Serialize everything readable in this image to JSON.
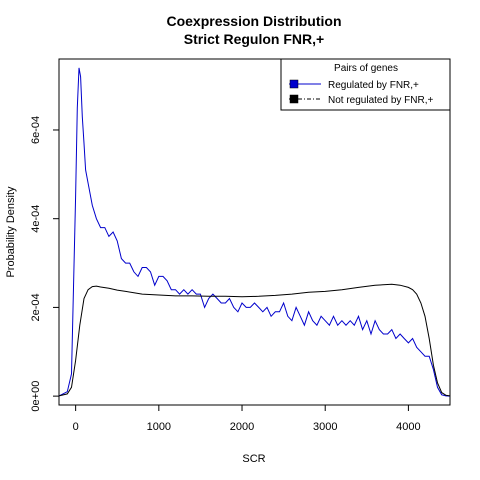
{
  "chart_data": {
    "type": "line",
    "title": "Coexpression Distribution",
    "subtitle": "Strict Regulon FNR,+",
    "xlabel": "SCR",
    "ylabel": "Probability Density",
    "xlim": [
      -200,
      4500
    ],
    "ylim": [
      -2e-05,
      0.00076
    ],
    "x_ticks": [
      0,
      1000,
      2000,
      3000,
      4000
    ],
    "x_tick_labels": [
      "0",
      "1000",
      "2000",
      "3000",
      "4000"
    ],
    "y_ticks": [
      0,
      0.0002,
      0.0004,
      0.0006
    ],
    "y_tick_labels": [
      "0e+00",
      "2e-04",
      "4e-04",
      "6e-04"
    ],
    "grid": false,
    "legend": {
      "title": "Pairs of genes",
      "position": "top-right",
      "entries": [
        "Regulated by  FNR,+",
        "Not regulated by  FNR,+"
      ]
    },
    "series": [
      {
        "name": "Regulated by  FNR,+",
        "color": "#0000cc",
        "x": [
          -200,
          -100,
          -50,
          0,
          20,
          40,
          60,
          80,
          100,
          120,
          150,
          200,
          250,
          300,
          350,
          400,
          450,
          500,
          550,
          600,
          650,
          700,
          750,
          800,
          850,
          900,
          950,
          1000,
          1050,
          1100,
          1150,
          1200,
          1250,
          1300,
          1350,
          1400,
          1450,
          1500,
          1550,
          1600,
          1650,
          1700,
          1750,
          1800,
          1850,
          1900,
          1950,
          2000,
          2050,
          2100,
          2150,
          2200,
          2250,
          2300,
          2350,
          2400,
          2450,
          2500,
          2550,
          2600,
          2650,
          2700,
          2750,
          2800,
          2850,
          2900,
          2950,
          3000,
          3050,
          3100,
          3150,
          3200,
          3250,
          3300,
          3350,
          3400,
          3450,
          3500,
          3550,
          3600,
          3650,
          3700,
          3750,
          3800,
          3850,
          3900,
          3950,
          4000,
          4050,
          4100,
          4150,
          4200,
          4250,
          4300,
          4350,
          4400,
          4450,
          4500
        ],
        "y": [
          5e-07,
          1e-05,
          5e-05,
          0.00045,
          0.00065,
          0.00074,
          0.00072,
          0.00063,
          0.00057,
          0.00051,
          0.00048,
          0.00043,
          0.0004,
          0.00038,
          0.00038,
          0.00036,
          0.00037,
          0.00035,
          0.00031,
          0.0003,
          0.0003,
          0.00028,
          0.00027,
          0.00029,
          0.00029,
          0.00028,
          0.00025,
          0.00027,
          0.00027,
          0.00026,
          0.00024,
          0.00024,
          0.00023,
          0.00024,
          0.00023,
          0.00024,
          0.00023,
          0.00023,
          0.0002,
          0.00022,
          0.00023,
          0.00022,
          0.00021,
          0.00021,
          0.00022,
          0.0002,
          0.00019,
          0.00021,
          0.0002,
          0.0002,
          0.00021,
          0.0002,
          0.00019,
          0.0002,
          0.00018,
          0.00019,
          0.00019,
          0.00021,
          0.00018,
          0.00017,
          0.0002,
          0.00018,
          0.00016,
          0.00019,
          0.00017,
          0.00016,
          0.00018,
          0.00017,
          0.00016,
          0.00018,
          0.00016,
          0.00017,
          0.00016,
          0.00017,
          0.00016,
          0.00018,
          0.00015,
          0.00017,
          0.00014,
          0.00017,
          0.00015,
          0.00014,
          0.00014,
          0.00015,
          0.00013,
          0.00014,
          0.00013,
          0.00012,
          0.00013,
          0.00011,
          0.0001,
          9e-05,
          9e-05,
          6e-05,
          2e-05,
          3e-06,
          5e-07,
          0.0
        ]
      },
      {
        "name": "Not regulated by  FNR,+",
        "color": "#000000",
        "x": [
          -200,
          -100,
          -50,
          0,
          50,
          100,
          150,
          200,
          250,
          300,
          400,
          500,
          600,
          700,
          800,
          1000,
          1200,
          1400,
          1600,
          1800,
          2000,
          2200,
          2400,
          2600,
          2800,
          3000,
          3200,
          3400,
          3600,
          3800,
          3900,
          4000,
          4050,
          4100,
          4150,
          4200,
          4250,
          4300,
          4350,
          4400,
          4450,
          4500
        ],
        "y": [
          5e-07,
          5e-06,
          2e-05,
          8e-05,
          0.00016,
          0.00022,
          0.00024,
          0.000247,
          0.000248,
          0.000246,
          0.000243,
          0.000239,
          0.000236,
          0.000233,
          0.00023,
          0.000228,
          0.000226,
          0.000226,
          0.000225,
          0.000225,
          0.000224,
          0.000225,
          0.000227,
          0.00023,
          0.000234,
          0.000236,
          0.00024,
          0.000245,
          0.00025,
          0.000252,
          0.00025,
          0.000245,
          0.00024,
          0.00023,
          0.00021,
          0.00018,
          0.00013,
          7e-05,
          3e-05,
          8e-06,
          2e-06,
          5e-07
        ]
      }
    ]
  }
}
